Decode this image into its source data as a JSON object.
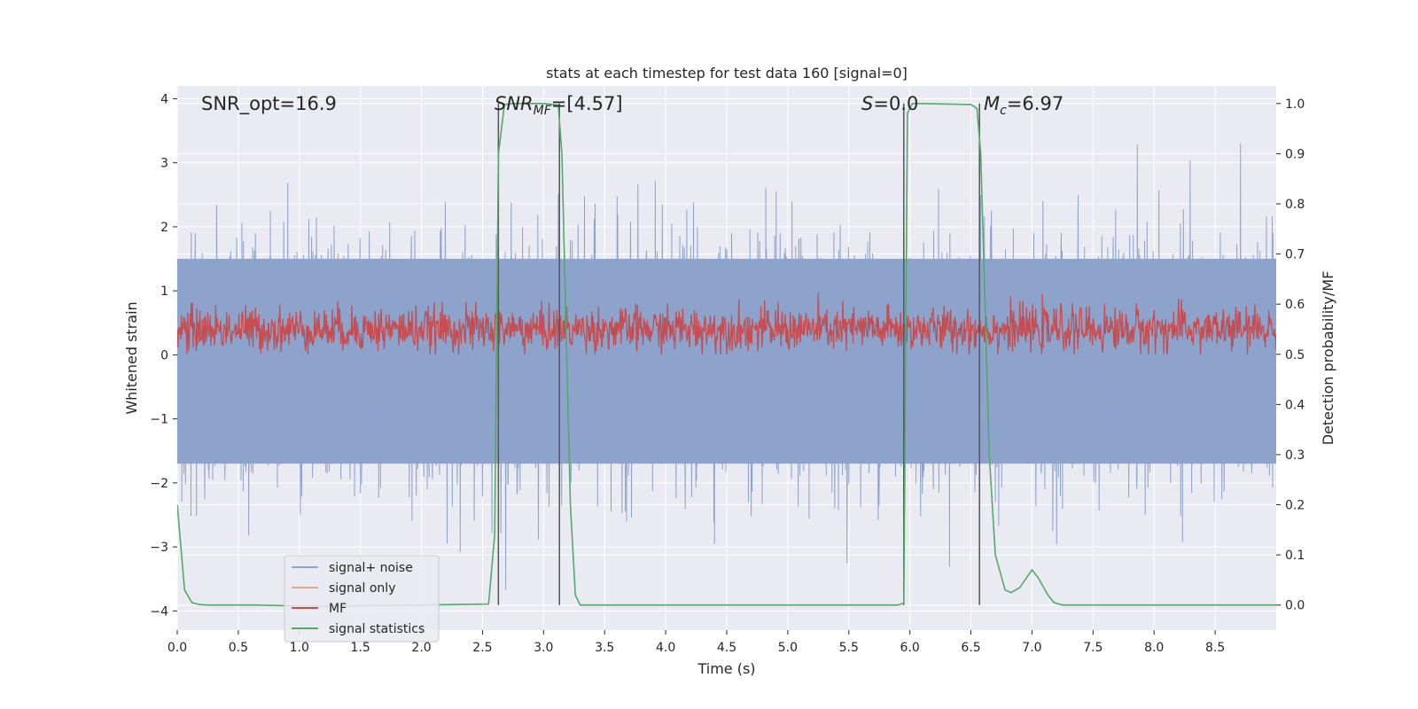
{
  "chart_data": {
    "type": "line",
    "title": "stats at each timestep for test data 160 [signal=0]",
    "xlabel": "Time (s)",
    "ylabel_left": "Whitened strain",
    "ylabel_right": "Detection probability/MF",
    "xlim": [
      0.0,
      9.0
    ],
    "ylim_left": [
      -4.3,
      4.2
    ],
    "ylim_right": [
      -0.05,
      1.035
    ],
    "x_ticks": [
      "0.0",
      "0.5",
      "1.0",
      "1.5",
      "2.0",
      "2.5",
      "3.0",
      "3.5",
      "4.0",
      "4.5",
      "5.0",
      "5.5",
      "6.0",
      "6.5",
      "7.0",
      "7.5",
      "8.0",
      "8.5"
    ],
    "x_tick_values": [
      0.0,
      0.5,
      1.0,
      1.5,
      2.0,
      2.5,
      3.0,
      3.5,
      4.0,
      4.5,
      5.0,
      5.5,
      6.0,
      6.5,
      7.0,
      7.5,
      8.0,
      8.5
    ],
    "y_left_ticks": [
      "−4",
      "−3",
      "−2",
      "−1",
      "0",
      "1",
      "2",
      "3",
      "4"
    ],
    "y_left_tick_values": [
      -4,
      -3,
      -2,
      -1,
      0,
      1,
      2,
      3,
      4
    ],
    "y_right_ticks": [
      "0.0",
      "0.1",
      "0.2",
      "0.3",
      "0.4",
      "0.5",
      "0.6",
      "0.7",
      "0.8",
      "0.9",
      "1.0"
    ],
    "y_right_tick_values": [
      0.0,
      0.1,
      0.2,
      0.3,
      0.4,
      0.5,
      0.6,
      0.7,
      0.8,
      0.9,
      1.0
    ],
    "annotations": {
      "snr_opt": "SNR_opt=16.9",
      "snr_mf_label": "SNR",
      "snr_mf_sub": "MF",
      "snr_mf_value": "=[4.57]",
      "s_label": "S",
      "s_value": "=0.0",
      "mc_label": "M",
      "mc_sub": "c",
      "mc_value": "=6.97"
    },
    "legend": {
      "position": "lower-left",
      "entries": [
        "signal+ noise",
        "signal only",
        "MF",
        "signal statistics"
      ]
    },
    "colors": {
      "background": "#eaeaf2",
      "grid": "#ffffff",
      "noise": "#8ea3cc",
      "signal_only": "#f0a27e",
      "mf": "#c44e52",
      "stats": "#55a868",
      "vline": "#555555"
    },
    "series": [
      {
        "name": "signal+ noise",
        "axis": "left",
        "description": "whitened strain noise spanning roughly -4.0 to 3.5",
        "envelope_low": -4.0,
        "envelope_high": 3.5,
        "core_range": [
          -1.7,
          1.5
        ]
      },
      {
        "name": "signal only",
        "axis": "left",
        "values": []
      },
      {
        "name": "MF",
        "axis": "right",
        "range": [
          0.5,
          0.63
        ],
        "center": 0.55
      },
      {
        "name": "signal statistics",
        "axis": "right",
        "x": [
          0.0,
          0.06,
          0.12,
          0.18,
          0.25,
          0.5,
          0.65,
          1.0,
          1.3,
          2.0,
          2.55,
          2.6,
          2.63,
          2.68,
          2.75,
          3.0,
          3.12,
          3.15,
          3.22,
          3.26,
          3.3,
          4.0,
          5.0,
          5.9,
          5.95,
          5.98,
          6.02,
          6.1,
          6.5,
          6.55,
          6.58,
          6.65,
          6.7,
          6.78,
          6.83,
          6.9,
          7.0,
          7.05,
          7.13,
          7.18,
          7.25,
          8.0,
          9.0
        ],
        "y": [
          0.2,
          0.03,
          0.005,
          0.001,
          0.0,
          0.0,
          0.0,
          -0.002,
          -0.002,
          0.0,
          0.002,
          0.14,
          0.9,
          0.998,
          1.0,
          1.0,
          0.997,
          0.9,
          0.2,
          0.02,
          0.0,
          0.0,
          0.0,
          0.0,
          0.004,
          0.98,
          1.0,
          1.0,
          0.998,
          0.99,
          0.9,
          0.3,
          0.1,
          0.03,
          0.025,
          0.035,
          0.07,
          0.055,
          0.02,
          0.005,
          0.0,
          0.0,
          0.0
        ]
      }
    ],
    "vertical_lines_x": [
      2.63,
      3.13,
      5.95,
      6.57
    ]
  }
}
